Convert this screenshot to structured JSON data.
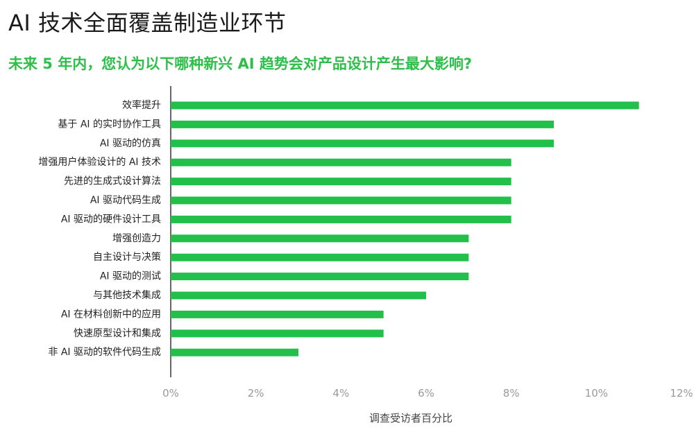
{
  "title": "AI 技术全面覆盖制造业环节",
  "subtitle": "未来 5 年内，您认为以下哪种新兴 AI 趋势会对产品设计产生最大影响?",
  "chart_data": {
    "type": "bar",
    "orientation": "horizontal",
    "categories": [
      "效率提升",
      "基于 AI 的实时协作工具",
      "AI 驱动的仿真",
      "增强用户体验设计的 AI 技术",
      "先进的生成式设计算法",
      "AI 驱动代码生成",
      "AI 驱动的硬件设计工具",
      "增强创造力",
      "自主设计与决策",
      "AI 驱动的测试",
      "与其他技术集成",
      "AI 在材料创新中的应用",
      "快速原型设计和集成",
      "非 AI 驱动的软件代码生成"
    ],
    "values": [
      11,
      9,
      9,
      8,
      8,
      8,
      8,
      7,
      7,
      7,
      6,
      5,
      5,
      3
    ],
    "xlabel": "调查受访者百分比",
    "xticks": [
      "0%",
      "2%",
      "4%",
      "6%",
      "8%",
      "10%",
      "12%"
    ],
    "xlim": [
      0,
      12
    ],
    "bar_color": "#22c04a",
    "grid": false
  }
}
